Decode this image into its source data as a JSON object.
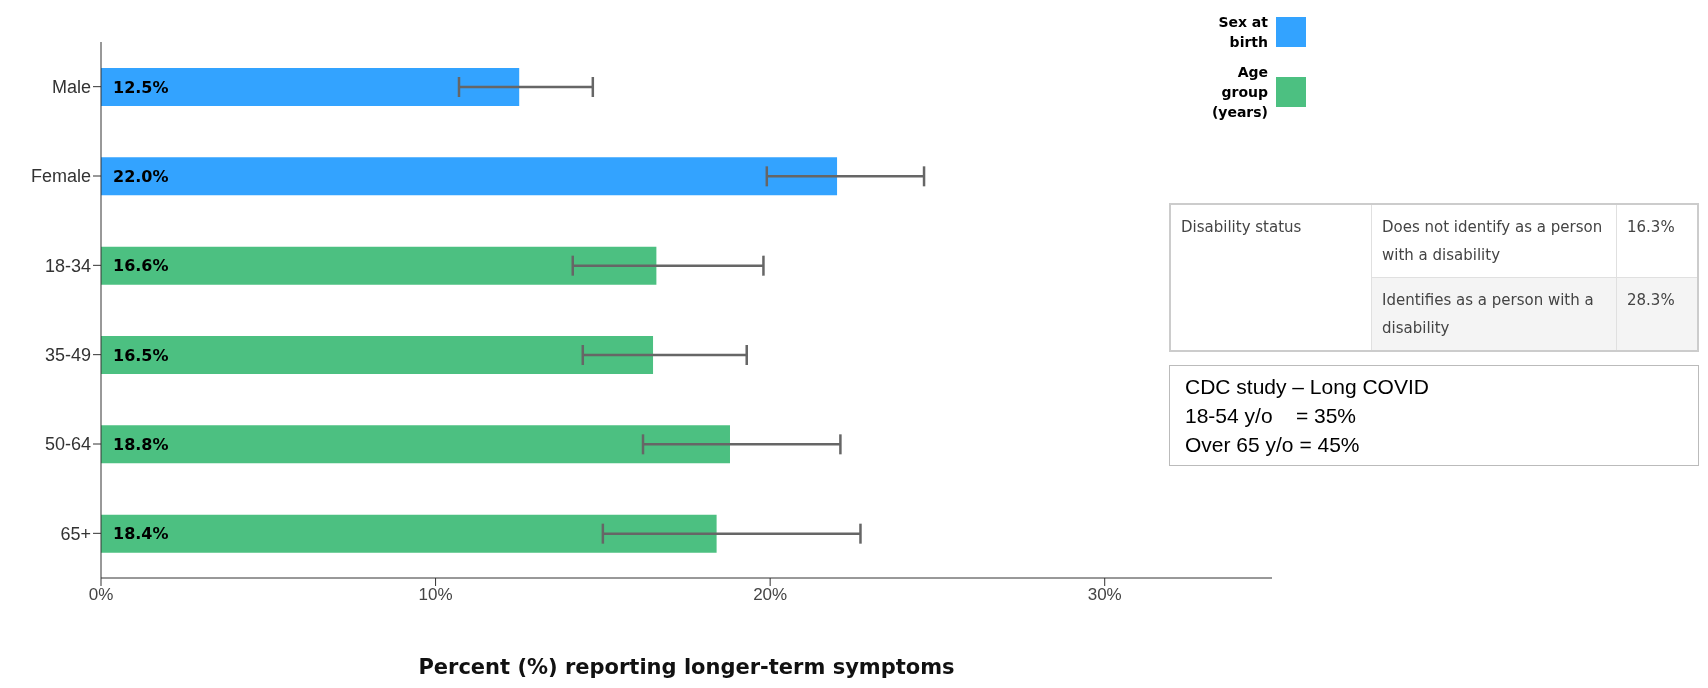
{
  "chart_data": {
    "type": "bar",
    "orientation": "horizontal",
    "stacked": true,
    "categories": [
      "Male",
      "Female",
      "18-34",
      "35-49",
      "50-64",
      "65+"
    ],
    "series": [
      {
        "name": "Sex at birth",
        "color": "#33a3ff",
        "values": [
          12.5,
          22.0,
          null,
          null,
          null,
          null
        ],
        "value_labels": [
          "12.5%",
          "22.0%",
          null,
          null,
          null,
          null
        ],
        "errors": [
          [
            10.7,
            14.7
          ],
          [
            19.9,
            24.6
          ],
          null,
          null,
          null,
          null
        ]
      },
      {
        "name": "Age group (years)",
        "color": "#4cc081",
        "values": [
          null,
          null,
          16.6,
          16.5,
          18.8,
          18.4
        ],
        "value_labels": [
          null,
          null,
          "16.6%",
          "16.5%",
          "18.8%",
          "18.4%"
        ],
        "errors": [
          null,
          null,
          [
            14.1,
            19.8
          ],
          [
            14.4,
            19.3
          ],
          [
            16.2,
            22.1
          ],
          [
            15.0,
            22.7
          ]
        ]
      }
    ],
    "xlabel": "Percent (%) reporting longer-term symptoms",
    "xlim": [
      0,
      35
    ],
    "xticks": [
      {
        "value": 0,
        "label": "0%"
      },
      {
        "value": 10,
        "label": "10%"
      },
      {
        "value": 20,
        "label": "20%"
      },
      {
        "value": 30,
        "label": "30%"
      }
    ],
    "legend": "top right",
    "annotations": [
      "Disability status",
      "Does not identify as a person with a disability",
      "16.3%",
      "Identifies as a person with a disability",
      "28.3%",
      "CDC study – Long COVID",
      "18-54 y/o    = 35%",
      "Over 65 y/o = 45%"
    ]
  }
}
